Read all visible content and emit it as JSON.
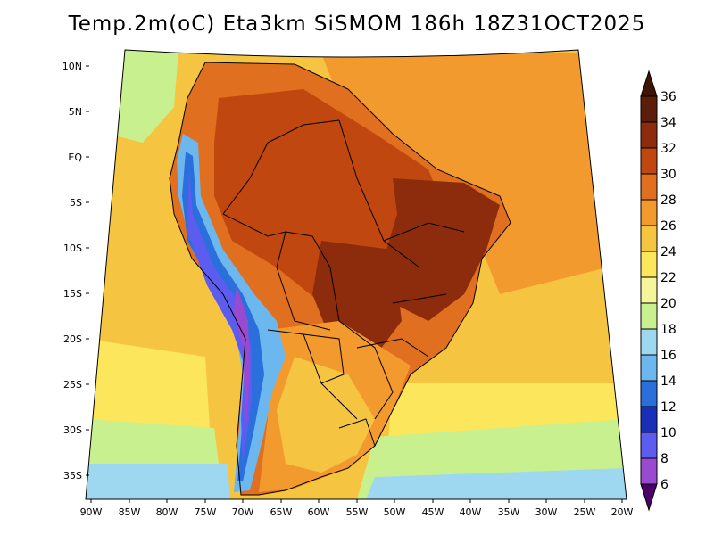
{
  "title": "Temp.2m(oC) Eta3km SiSMOM 186h 18Z31OCT2025",
  "axes": {
    "lat_labels": [
      "10N",
      "5N",
      "EQ",
      "5S",
      "10S",
      "15S",
      "20S",
      "25S",
      "30S",
      "35S"
    ],
    "lon_labels": [
      "90W",
      "85W",
      "80W",
      "75W",
      "70W",
      "65W",
      "60W",
      "55W",
      "50W",
      "45W",
      "40W",
      "35W",
      "30W",
      "25W",
      "20W"
    ]
  },
  "colorbar": {
    "labels": [
      "36",
      "34",
      "32",
      "30",
      "28",
      "26",
      "24",
      "22",
      "20",
      "18",
      "16",
      "14",
      "12",
      "10",
      "8",
      "6"
    ],
    "colors": [
      "#5c1e08",
      "#8c2c0c",
      "#c0470f",
      "#e0701f",
      "#f39a2e",
      "#f5c542",
      "#fbe65c",
      "#f5f59a",
      "#c9f08f",
      "#9ed8f0",
      "#6cb7ee",
      "#2a6fdb",
      "#1a2fb8",
      "#5d5cf0",
      "#9a4ad0",
      "#6a0a8a"
    ],
    "max_arrow_color": "#3d1405",
    "min_arrow_color": "#4b0069"
  },
  "regions": [
    {
      "name": "hot-core-amazon",
      "color": "#c0470f"
    },
    {
      "name": "hot-core-northeast",
      "color": "#8c2c0c"
    },
    {
      "name": "ocean-warm",
      "color": "#f39a2e"
    },
    {
      "name": "cool-south",
      "color": "#c9f08f"
    },
    {
      "name": "andes-cold",
      "color": "#2a6fdb"
    }
  ]
}
